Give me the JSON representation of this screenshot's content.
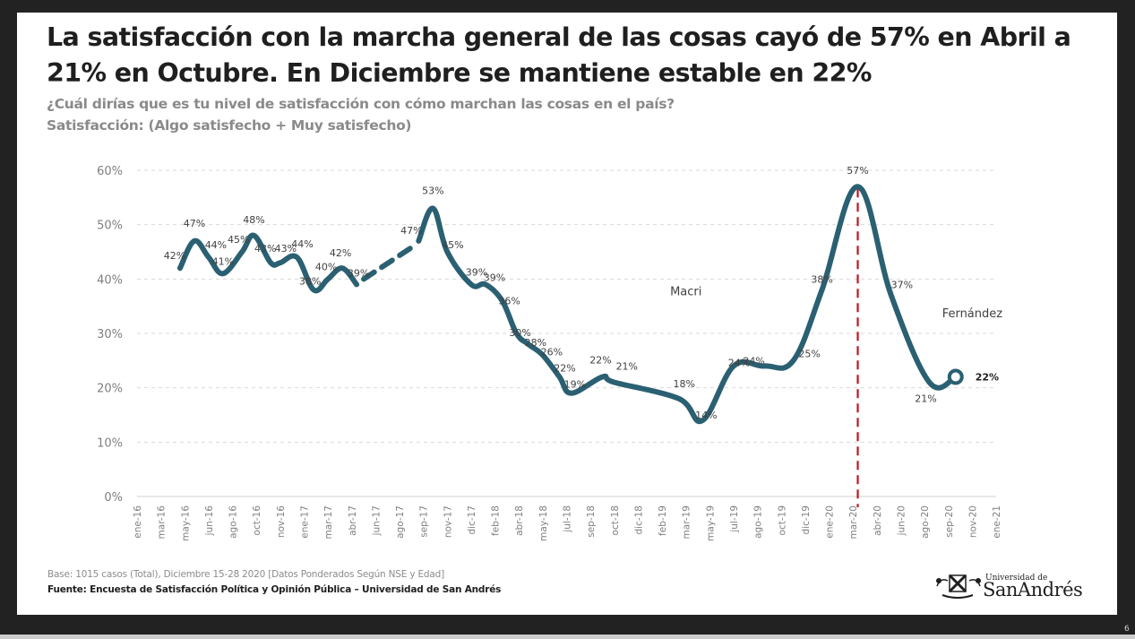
{
  "slide": {
    "title": "La satisfacción con la marcha general de las cosas cayó de 57% en Abril a 21% en Octubre. En Diciembre se mantiene estable en 22%",
    "title_line1": "La satisfacción con la marcha general de las cosas cayó de 57% en Abril a",
    "title_line2": "21% en Octubre. En Diciembre se mantiene estable en 22%",
    "question": "¿Cuál dirías que es tu nivel de satisfacción con cómo marchan las cosas en el país?",
    "measure": "Satisfacción: (Algo satisfecho + Muy satisfecho)",
    "base_note": "Base: 1015 casos (Total), Diciembre 15-28 2020 [Datos Ponderados Según NSE y Edad]",
    "source_note": "Fuente: Encuesta de Satisfacción Política y Opinión Pública – Universidad de San Andrés",
    "logo": {
      "small_text": "Universidad de",
      "big_text": "SanAndrés"
    },
    "page_number": "6"
  },
  "colors": {
    "line": "#2a6072",
    "divider": "#c0151f",
    "grid": "#d9d9d9",
    "axis_text": "#7f7f7f",
    "label_text": "#404040"
  },
  "chart_data": {
    "type": "line",
    "title": "Satisfacción: (Algo satisfecho + Muy satisfecho)",
    "xlabel": "",
    "ylabel": "",
    "ylim": [
      0,
      60
    ],
    "yticks": [
      "0%",
      "10%",
      "20%",
      "30%",
      "40%",
      "50%",
      "60%"
    ],
    "grid": true,
    "legend": "none",
    "categories": [
      "ene-16",
      "mar-16",
      "may-16",
      "jun-16",
      "ago-16",
      "oct-16",
      "nov-16",
      "ene-17",
      "mar-17",
      "abr-17",
      "jun-17",
      "ago-17",
      "sep-17",
      "nov-17",
      "dic-17",
      "feb-18",
      "abr-18",
      "may-18",
      "jul-18",
      "sep-18",
      "oct-18",
      "dic-18",
      "feb-19",
      "mar-19",
      "may-19",
      "jul-19",
      "ago-19",
      "oct-19",
      "dic-19",
      "ene-20",
      "mar-20",
      "abr-20",
      "jun-20",
      "ago-20",
      "sep-20",
      "nov-20",
      "ene-21"
    ],
    "series": [
      {
        "name": "Satisfacción",
        "points": [
          {
            "x": 1.8,
            "y": 42,
            "label": "42%"
          },
          {
            "x": 2.4,
            "y": 47,
            "label": "47%"
          },
          {
            "x": 3.0,
            "y": 44,
            "label": "44%"
          },
          {
            "x": 3.6,
            "y": 41,
            "label": "41%"
          },
          {
            "x": 4.4,
            "y": 45,
            "label": "45%"
          },
          {
            "x": 4.9,
            "y": 48,
            "label": "48%"
          },
          {
            "x": 5.6,
            "y": 43,
            "label": "43%"
          },
          {
            "x": 6.0,
            "y": 43,
            "label": "43%"
          },
          {
            "x": 6.7,
            "y": 44,
            "label": "44%"
          },
          {
            "x": 7.4,
            "y": 38,
            "label": "38%"
          },
          {
            "x": 8.0,
            "y": 40,
            "label": "40%"
          },
          {
            "x": 8.6,
            "y": 42,
            "label": "42%"
          },
          {
            "x": 9.2,
            "y": 39,
            "label": "39%"
          },
          {
            "x": 11.8,
            "y": 47,
            "label": "47%"
          },
          {
            "x": 12.4,
            "y": 53,
            "label": "53%"
          },
          {
            "x": 13.0,
            "y": 45,
            "label": "45%"
          },
          {
            "x": 14.0,
            "y": 39,
            "label": "39%"
          },
          {
            "x": 14.6,
            "y": 39,
            "label": "39%"
          },
          {
            "x": 15.3,
            "y": 36,
            "label": "36%"
          },
          {
            "x": 15.9,
            "y": 30,
            "label": "30%"
          },
          {
            "x": 16.4,
            "y": 28,
            "label": "28%"
          },
          {
            "x": 17.0,
            "y": 26,
            "label": "26%"
          },
          {
            "x": 17.7,
            "y": 22,
            "label": "22%"
          },
          {
            "x": 18.2,
            "y": 19,
            "label": "19%"
          },
          {
            "x": 19.5,
            "y": 22,
            "label": "22%"
          },
          {
            "x": 20.0,
            "y": 21,
            "label": "21%"
          },
          {
            "x": 22.7,
            "y": 18,
            "label": "18%"
          },
          {
            "x": 23.7,
            "y": 14,
            "label": "14%"
          },
          {
            "x": 25.0,
            "y": 24,
            "label": "24%"
          },
          {
            "x": 26.3,
            "y": 24,
            "label": "24%"
          },
          {
            "x": 27.5,
            "y": 25,
            "label": "25%"
          },
          {
            "x": 28.7,
            "y": 38,
            "label": "38%"
          },
          {
            "x": 30.2,
            "y": 57,
            "label": "57%"
          },
          {
            "x": 31.6,
            "y": 37,
            "label": "37%"
          },
          {
            "x": 33.2,
            "y": 21,
            "label": "21%"
          },
          {
            "x": 34.3,
            "y": 22,
            "label": "22%"
          }
        ],
        "dashed_segment": {
          "from_index": 12,
          "to_index": 13,
          "note": "gap between abr-17 and sep-17 drawn dashed"
        },
        "last_point_marker": "hollow-circle"
      }
    ],
    "annotations": [
      {
        "text": "Macri",
        "x": 23.0,
        "y": 37
      },
      {
        "text": "Fernández",
        "x": 35.0,
        "y": 33
      },
      {
        "type": "vertical-dashed-line",
        "x": 30.2,
        "meaning": "change of government period divider"
      }
    ]
  }
}
